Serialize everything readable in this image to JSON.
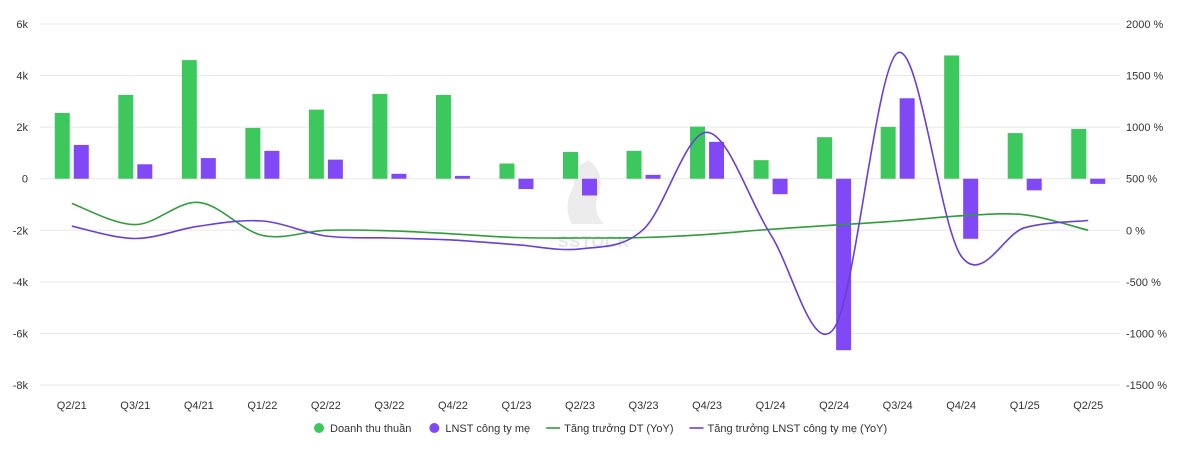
{
  "chart_data": {
    "type": "bar",
    "categories": [
      "Q2/21",
      "Q3/21",
      "Q4/21",
      "Q1/22",
      "Q2/22",
      "Q3/22",
      "Q4/22",
      "Q1/23",
      "Q2/23",
      "Q3/23",
      "Q4/23",
      "Q1/24",
      "Q2/24",
      "Q3/24",
      "Q4/24",
      "Q1/25",
      "Q2/25"
    ],
    "y_left": {
      "ylim": [
        -8000,
        6000
      ],
      "ticks": [
        6000,
        4000,
        2000,
        0,
        -2000,
        -4000,
        -6000,
        -8000
      ],
      "tick_labels": [
        "6k",
        "4k",
        "2k",
        "0",
        "-2k",
        "-4k",
        "-6k",
        "-8k"
      ]
    },
    "y_right": {
      "ylim": [
        -1500,
        2000
      ],
      "ticks": [
        2000,
        1500,
        1000,
        500,
        0,
        -500,
        -1000,
        -1500
      ],
      "tick_labels": [
        "2000 %",
        "1500 %",
        "1000 %",
        "500 %",
        "0 %",
        "-500 %",
        "-1000 %",
        "-1500 %"
      ]
    },
    "grid": true,
    "legend_position": "bottom",
    "series": [
      {
        "name": "Doanh thu thuần",
        "kind": "bar",
        "axis": "left",
        "color": "#3cc85c",
        "values": [
          2550,
          3250,
          4600,
          1970,
          2680,
          3290,
          3250,
          590,
          1040,
          1080,
          2020,
          720,
          1610,
          2010,
          4780,
          1770,
          1930
        ]
      },
      {
        "name": "LNST công ty mẹ",
        "kind": "bar",
        "axis": "left",
        "color": "#8148f5",
        "values": [
          1310,
          560,
          800,
          1080,
          740,
          190,
          110,
          -400,
          -650,
          150,
          1430,
          -600,
          -6650,
          3120,
          -2330,
          -450,
          -200
        ]
      },
      {
        "name": "Tăng trưởng DT (YoY)",
        "kind": "line",
        "axis": "right",
        "color": "#2e9d3a",
        "values": [
          260,
          55,
          270,
          -50,
          0,
          -5,
          -35,
          -70,
          -75,
          -70,
          -40,
          10,
          50,
          90,
          140,
          150,
          0
        ]
      },
      {
        "name": "Tăng trưởng LNST công ty mẹ (YoY)",
        "kind": "line",
        "axis": "right",
        "color": "#6a3fd6",
        "values": [
          40,
          -80,
          40,
          90,
          -55,
          -75,
          -95,
          -140,
          -180,
          10,
          950,
          -40,
          -950,
          1720,
          -250,
          25,
          95
        ]
      }
    ]
  },
  "watermark": {
    "text": "SSTOCK"
  }
}
